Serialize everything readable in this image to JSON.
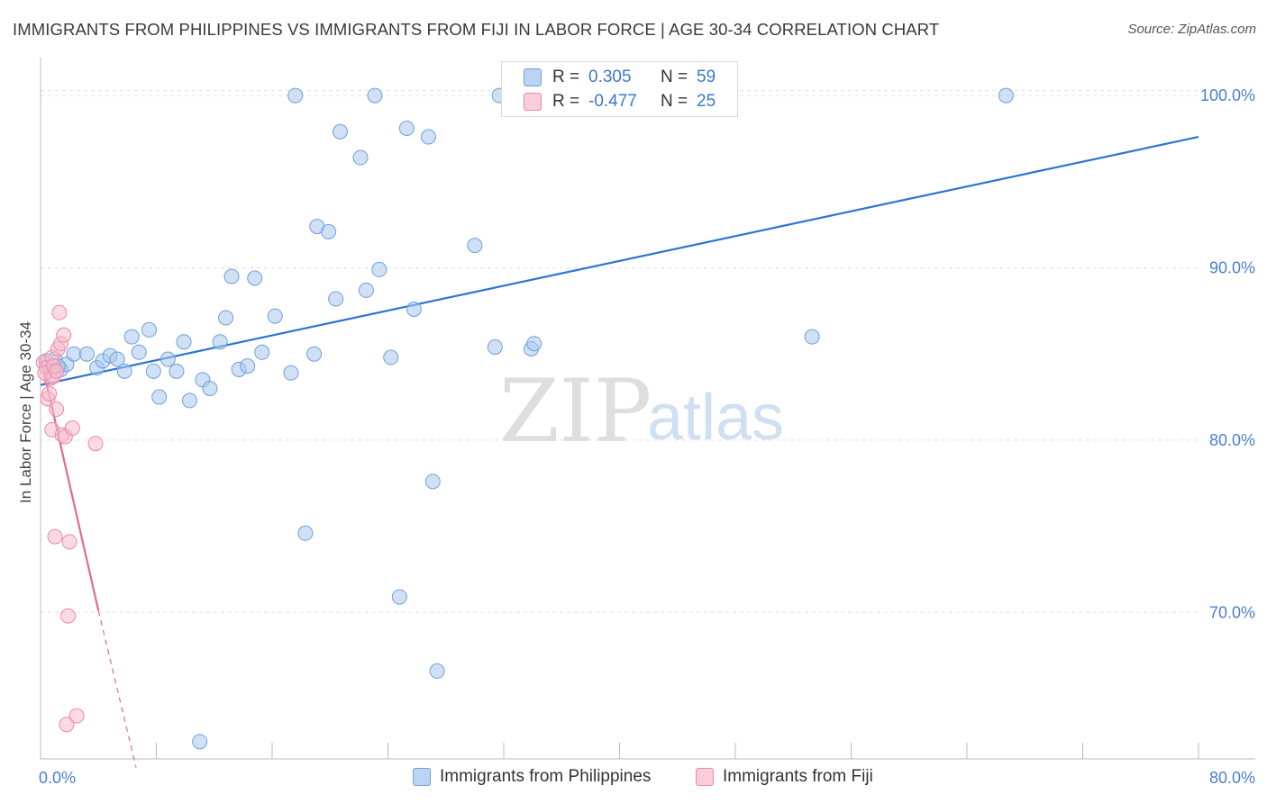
{
  "title": "IMMIGRANTS FROM PHILIPPINES VS IMMIGRANTS FROM FIJI IN LABOR FORCE | AGE 30-34 CORRELATION CHART",
  "source": "Source: ZipAtlas.com",
  "watermark": {
    "zip": "ZIP",
    "atlas": "atlas"
  },
  "colors": {
    "blue_fill": "#a9c8ef",
    "blue_stroke": "#6f9fdc",
    "blue_line": "#2e74d0",
    "pink_fill": "#f7bccc",
    "pink_stroke": "#e98aa6",
    "pink_line": "#e06a94",
    "tick_text": "#4a7fcf",
    "grid": "#e2e2e2"
  },
  "legend": {
    "rows": [
      {
        "r_label": "R =",
        "r_value": "0.305",
        "n_label": "N =",
        "n_value": "59"
      },
      {
        "r_label": "R =",
        "r_value": "-0.477",
        "n_label": "N =",
        "n_value": "25"
      }
    ]
  },
  "bottom_legend": {
    "philippines": "Immigrants from Philippines",
    "fiji": "Immigrants from Fiji"
  },
  "chart_data": {
    "type": "scatter",
    "title": "IMMIGRANTS FROM PHILIPPINES VS IMMIGRANTS FROM FIJI IN LABOR FORCE | AGE 30-34 CORRELATION CHART",
    "xlabel": "",
    "ylabel": "In Labor Force | Age 30-34",
    "xlim": [
      0,
      80
    ],
    "ylim": [
      61.5,
      102.2
    ],
    "x_tick_labels": [
      "0.0%",
      "80.0%"
    ],
    "y_ticks": [
      70,
      80,
      90,
      100
    ],
    "y_tick_labels": [
      "70.0%",
      "80.0%",
      "90.0%",
      "100.0%"
    ],
    "legend_position": "top-center",
    "series": [
      {
        "name": "Immigrants from Philippines",
        "r": 0.305,
        "n": 59,
        "trend": {
          "x": [
            0,
            80
          ],
          "y": [
            83.2,
            97.6
          ]
        },
        "points": [
          [
            0.4,
            84.6
          ],
          [
            0.8,
            84.2
          ],
          [
            1.0,
            84.7
          ],
          [
            1.4,
            84.1
          ],
          [
            1.8,
            84.4
          ],
          [
            2.3,
            85.0
          ],
          [
            3.2,
            85.0
          ],
          [
            3.9,
            84.2
          ],
          [
            4.3,
            84.6
          ],
          [
            4.8,
            84.9
          ],
          [
            5.3,
            84.7
          ],
          [
            5.8,
            84.0
          ],
          [
            6.3,
            86.0
          ],
          [
            6.8,
            85.1
          ],
          [
            7.5,
            86.4
          ],
          [
            7.8,
            84.0
          ],
          [
            8.2,
            82.5
          ],
          [
            8.8,
            84.7
          ],
          [
            9.4,
            84.0
          ],
          [
            9.9,
            85.7
          ],
          [
            10.3,
            82.3
          ],
          [
            11.2,
            83.5
          ],
          [
            11.7,
            83.0
          ],
          [
            12.4,
            85.7
          ],
          [
            12.8,
            87.1
          ],
          [
            13.2,
            89.5
          ],
          [
            13.7,
            84.1
          ],
          [
            14.3,
            84.3
          ],
          [
            14.8,
            89.4
          ],
          [
            15.3,
            85.1
          ],
          [
            16.2,
            87.2
          ],
          [
            17.3,
            83.9
          ],
          [
            17.6,
            100.0
          ],
          [
            18.3,
            74.6
          ],
          [
            18.9,
            85.0
          ],
          [
            19.1,
            92.4
          ],
          [
            19.9,
            92.1
          ],
          [
            20.4,
            88.2
          ],
          [
            20.7,
            97.9
          ],
          [
            22.1,
            96.4
          ],
          [
            22.5,
            88.7
          ],
          [
            23.1,
            100.0
          ],
          [
            23.4,
            89.9
          ],
          [
            24.2,
            84.8
          ],
          [
            24.8,
            70.9
          ],
          [
            25.3,
            98.1
          ],
          [
            25.8,
            87.6
          ],
          [
            26.8,
            97.6
          ],
          [
            27.1,
            77.6
          ],
          [
            27.4,
            66.6
          ],
          [
            30.0,
            91.3
          ],
          [
            31.4,
            85.4
          ],
          [
            31.7,
            100.0
          ],
          [
            33.9,
            85.3
          ],
          [
            34.1,
            85.6
          ],
          [
            53.3,
            86.0
          ],
          [
            11.0,
            62.5
          ],
          [
            66.7,
            100.0
          ],
          [
            1.2,
            84.3
          ]
        ]
      },
      {
        "name": "Immigrants from Fiji",
        "r": -0.477,
        "n": 25,
        "trend": {
          "x": [
            0,
            4.0
          ],
          "y": [
            84.8,
            70.1
          ],
          "dashed_to": {
            "x": 6.6,
            "y": 61.0
          }
        },
        "points": [
          [
            0.2,
            84.5
          ],
          [
            0.4,
            84.2
          ],
          [
            0.5,
            82.4
          ],
          [
            0.6,
            82.7
          ],
          [
            0.7,
            83.6
          ],
          [
            0.8,
            80.6
          ],
          [
            0.8,
            84.8
          ],
          [
            0.9,
            83.7
          ],
          [
            1.0,
            74.4
          ],
          [
            1.1,
            81.8
          ],
          [
            1.2,
            85.3
          ],
          [
            1.3,
            87.4
          ],
          [
            1.4,
            85.6
          ],
          [
            1.5,
            80.3
          ],
          [
            1.6,
            86.1
          ],
          [
            1.7,
            80.2
          ],
          [
            1.8,
            63.5
          ],
          [
            1.9,
            69.8
          ],
          [
            2.0,
            74.1
          ],
          [
            2.2,
            80.7
          ],
          [
            2.5,
            64.0
          ],
          [
            3.8,
            79.8
          ],
          [
            0.3,
            83.9
          ],
          [
            0.9,
            84.3
          ],
          [
            1.1,
            84.0
          ]
        ]
      }
    ]
  }
}
